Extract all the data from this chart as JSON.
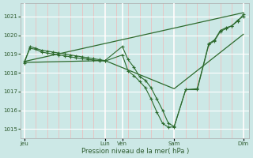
{
  "background_color": "#cce8e6",
  "grid_white_color": "#ffffff",
  "grid_pink_color": "#f0b8b8",
  "line_color": "#2d6a2d",
  "xlabel": "Pression niveau de la mer( hPa )",
  "ylim": [
    1014.5,
    1021.7
  ],
  "yticks": [
    1015,
    1016,
    1017,
    1018,
    1019,
    1020,
    1021
  ],
  "xlim": [
    -0.3,
    19.5
  ],
  "xtick_labels": [
    "Jeu",
    "Lun",
    "Ven",
    "Sam",
    "Dim"
  ],
  "xtick_positions": [
    0,
    7,
    8.5,
    13,
    19
  ],
  "vlines_white": [
    0,
    7,
    8.5,
    13,
    19
  ],
  "n_minor_vlines": 19,
  "series1": {
    "x": [
      0,
      0.5,
      1,
      1.5,
      2,
      2.5,
      3,
      3.5,
      4,
      4.5,
      5,
      5.5,
      6,
      6.5,
      7,
      8.5,
      9,
      9.5,
      10,
      10.5,
      11,
      11.5,
      12,
      12.5,
      13,
      14,
      15,
      16,
      16.5,
      17,
      17.5,
      18,
      18.5,
      19
    ],
    "y": [
      1018.5,
      1019.4,
      1019.3,
      1019.2,
      1019.15,
      1019.1,
      1019.05,
      1019.0,
      1018.95,
      1018.9,
      1018.85,
      1018.8,
      1018.75,
      1018.7,
      1018.65,
      1019.4,
      1018.7,
      1018.3,
      1017.8,
      1017.6,
      1017.2,
      1016.6,
      1016.0,
      1015.3,
      1015.15,
      1017.1,
      1017.1,
      1019.5,
      1019.7,
      1020.2,
      1020.35,
      1020.5,
      1020.75,
      1021.1
    ]
  },
  "series2": {
    "x": [
      0,
      0.5,
      1,
      1.5,
      2,
      2.5,
      3,
      3.5,
      4,
      4.5,
      5,
      5.5,
      6,
      6.5,
      7,
      8.5,
      9,
      9.5,
      10,
      10.5,
      11,
      11.5,
      12,
      12.5,
      13,
      14,
      15,
      16,
      16.5,
      17,
      17.5,
      18,
      18.5,
      19
    ],
    "y": [
      1018.6,
      1019.3,
      1019.25,
      1019.1,
      1019.05,
      1019.0,
      1018.95,
      1018.9,
      1018.85,
      1018.8,
      1018.75,
      1018.72,
      1018.68,
      1018.65,
      1018.62,
      1018.95,
      1018.1,
      1017.85,
      1017.55,
      1017.2,
      1016.6,
      1015.9,
      1015.3,
      1015.1,
      1015.12,
      1017.1,
      1017.15,
      1019.55,
      1019.75,
      1020.25,
      1020.4,
      1020.5,
      1020.8,
      1021.0
    ]
  },
  "trend1": {
    "x": [
      0,
      19
    ],
    "y": [
      1018.6,
      1021.2
    ]
  },
  "trend2": {
    "x": [
      0,
      7,
      13,
      19
    ],
    "y": [
      1018.55,
      1018.65,
      1017.15,
      1020.05
    ]
  }
}
